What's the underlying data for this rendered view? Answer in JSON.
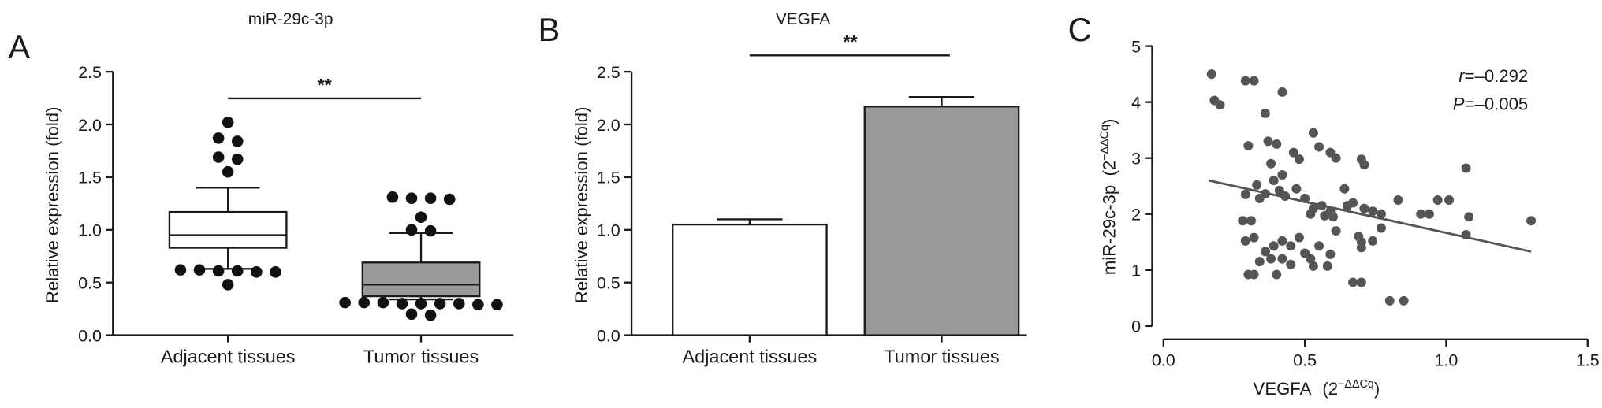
{
  "chart_data": [
    {
      "panel": "A",
      "type": "box",
      "title": "miR-29c-3p",
      "ylabel": "Relative expression (fold)",
      "categories": [
        "Adjacent tissues",
        "Tumor tissues"
      ],
      "ylim": [
        0,
        2.5
      ],
      "yticks": [
        "0.0",
        "0.5",
        "1.0",
        "1.5",
        "2.0",
        "2.5"
      ],
      "boxes": [
        {
          "whisker_low": 0.63,
          "q1": 0.83,
          "median": 0.95,
          "q3": 1.17,
          "whisker_high": 1.4,
          "outliers": [
            2.02,
            1.87,
            1.84,
            1.69,
            1.67,
            1.55,
            0.62,
            0.62,
            0.61,
            0.61,
            0.6,
            0.6,
            0.48
          ]
        },
        {
          "whisker_low": 0.34,
          "q1": 0.37,
          "median": 0.48,
          "q3": 0.69,
          "whisker_high": 0.97,
          "outliers": [
            1.31,
            1.3,
            1.3,
            1.29,
            1.12,
            1.0,
            0.99,
            0.31,
            0.31,
            0.31,
            0.3,
            0.3,
            0.3,
            0.3,
            0.29,
            0.29,
            0.2,
            0.19
          ]
        }
      ],
      "box_fills": [
        "#ffffff",
        "#999999"
      ],
      "significance": {
        "label": "**"
      }
    },
    {
      "panel": "B",
      "type": "bar",
      "title": "VEGFA",
      "ylabel": "Relative expression (fold)",
      "categories": [
        "Adjacent tissues",
        "Tumor tissues"
      ],
      "values": [
        1.05,
        2.17
      ],
      "errors": [
        0.05,
        0.09
      ],
      "ylim": [
        0,
        2.5
      ],
      "yticks": [
        "0.0",
        "0.5",
        "1.0",
        "1.5",
        "2.0",
        "2.5"
      ],
      "bar_fills": [
        "#ffffff",
        "#999999"
      ],
      "significance": {
        "label": "**"
      }
    },
    {
      "panel": "C",
      "type": "scatter",
      "xlabel": {
        "text": "VEGFA",
        "unit_base": "(2",
        "unit_exp": "−ΔΔCq",
        "unit_close": ")"
      },
      "ylabel": {
        "text": "miR-29c-3p",
        "unit_base": "(2",
        "unit_exp": "−ΔΔCq",
        "unit_close": ")"
      },
      "xlim": [
        0,
        1.5
      ],
      "ylim": [
        0,
        5
      ],
      "xticks": [
        "0.0",
        "0.5",
        "1.0",
        "1.5"
      ],
      "yticks": [
        "0",
        "1",
        "2",
        "3",
        "4",
        "5"
      ],
      "x": [
        0.17,
        0.18,
        0.2,
        0.29,
        0.32,
        0.42,
        0.36,
        0.3,
        0.37,
        0.4,
        0.38,
        0.42,
        0.39,
        0.46,
        0.48,
        0.53,
        0.55,
        0.59,
        0.61,
        0.7,
        0.71,
        1.07,
        0.33,
        0.36,
        0.34,
        0.29,
        0.41,
        0.43,
        0.47,
        0.5,
        0.53,
        0.52,
        0.56,
        0.57,
        0.59,
        0.6,
        0.64,
        0.65,
        0.67,
        0.71,
        0.74,
        0.77,
        0.83,
        0.91,
        0.94,
        0.97,
        1.01,
        1.08,
        1.07,
        1.3,
        0.28,
        0.31,
        0.29,
        0.32,
        0.36,
        0.39,
        0.42,
        0.45,
        0.48,
        0.5,
        0.52,
        0.55,
        0.59,
        0.61,
        0.69,
        0.7,
        0.7,
        0.74,
        0.77,
        0.34,
        0.38,
        0.42,
        0.45,
        0.53,
        0.58,
        0.4,
        0.3,
        0.32,
        0.67,
        0.7,
        0.8,
        0.85
      ],
      "y": [
        4.5,
        4.03,
        3.95,
        4.38,
        4.38,
        4.18,
        3.8,
        3.22,
        3.3,
        3.25,
        2.9,
        2.7,
        2.6,
        3.1,
        2.98,
        3.45,
        3.2,
        3.1,
        3.0,
        2.98,
        2.88,
        2.82,
        2.52,
        2.36,
        2.28,
        2.35,
        2.42,
        2.32,
        2.45,
        2.28,
        2.1,
        2.0,
        2.15,
        1.97,
        2.05,
        1.95,
        2.45,
        2.15,
        2.2,
        2.1,
        2.05,
        2.0,
        2.25,
        2.0,
        2.0,
        2.25,
        2.25,
        1.95,
        1.63,
        1.88,
        1.88,
        1.88,
        1.52,
        1.58,
        1.33,
        1.43,
        1.52,
        1.43,
        1.58,
        1.3,
        1.2,
        1.43,
        1.28,
        1.7,
        1.6,
        1.5,
        1.4,
        1.52,
        1.75,
        1.15,
        1.2,
        1.2,
        1.1,
        1.07,
        1.07,
        0.92,
        0.92,
        0.92,
        0.78,
        0.78,
        0.45,
        0.45
      ],
      "fit_line": {
        "x": [
          0.16,
          1.3
        ],
        "y": [
          2.6,
          1.33
        ]
      },
      "stats": {
        "r_symbol": "r",
        "r_value": "=–0.292",
        "p_symbol": "P",
        "p_value": "=–0.005"
      },
      "colors": {
        "points": "#555555",
        "fit_line": "#555555"
      }
    }
  ]
}
